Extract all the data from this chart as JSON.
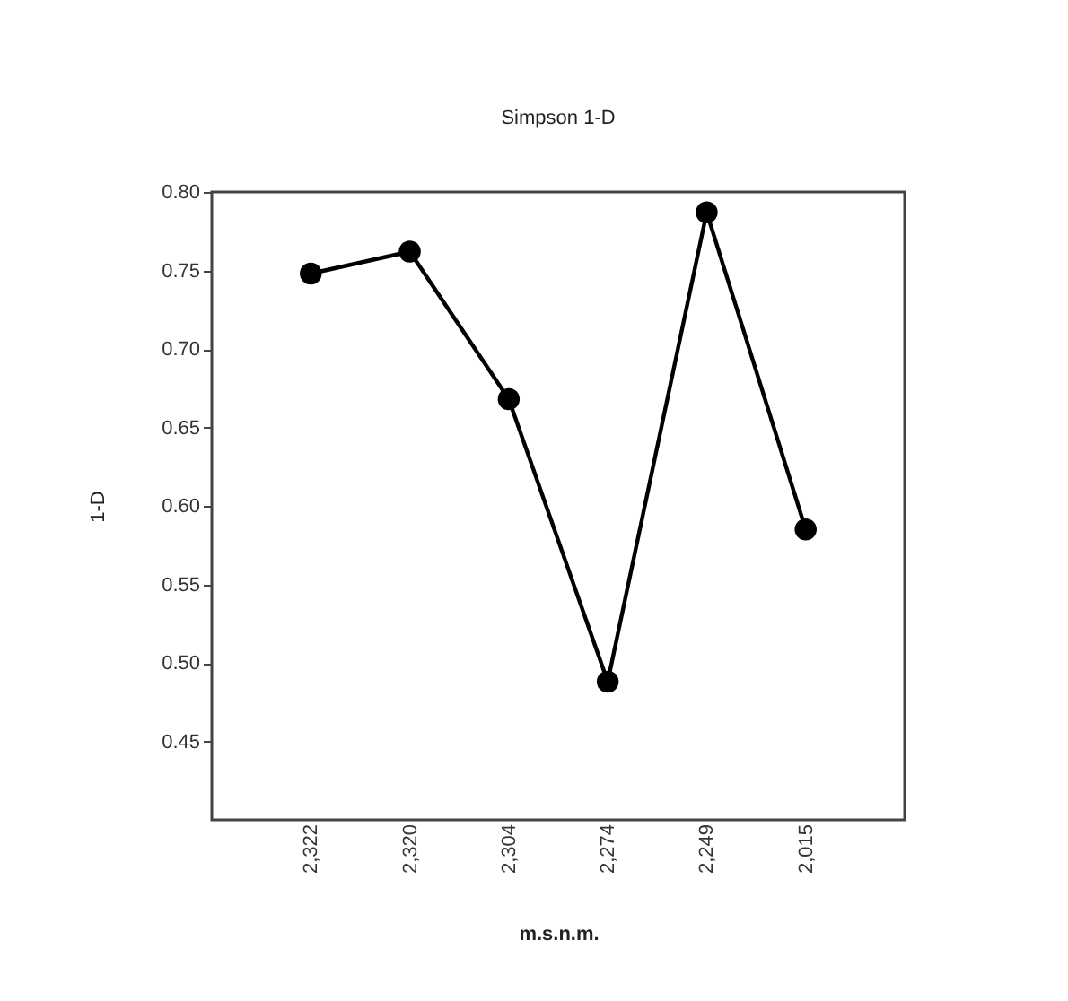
{
  "chart_data": {
    "type": "line",
    "title": "Simpson 1-D",
    "xlabel": "m.s.n.m.",
    "ylabel": "1-D",
    "categories": [
      "2,322",
      "2,320",
      "2,304",
      "2,274",
      "2,249",
      "2,015"
    ],
    "series": [
      {
        "color": "#000000",
        "values": [
          0.748,
          0.762,
          0.668,
          0.488,
          0.787,
          0.585
        ]
      }
    ],
    "ylim": [
      0.4,
      0.8
    ],
    "yticks": [
      {
        "value": 0.45,
        "label": "0.45"
      },
      {
        "value": 0.5,
        "label": "0.50"
      },
      {
        "value": 0.55,
        "label": "0.55"
      },
      {
        "value": 0.6,
        "label": "0.60"
      },
      {
        "value": 0.65,
        "label": "0.65"
      },
      {
        "value": 0.7,
        "label": "0.70"
      },
      {
        "value": 0.75,
        "label": "0.75"
      },
      {
        "value": 0.8,
        "label": "0.80"
      }
    ],
    "marker": "circle",
    "line_style": "solid",
    "grid": false,
    "legend": false
  }
}
